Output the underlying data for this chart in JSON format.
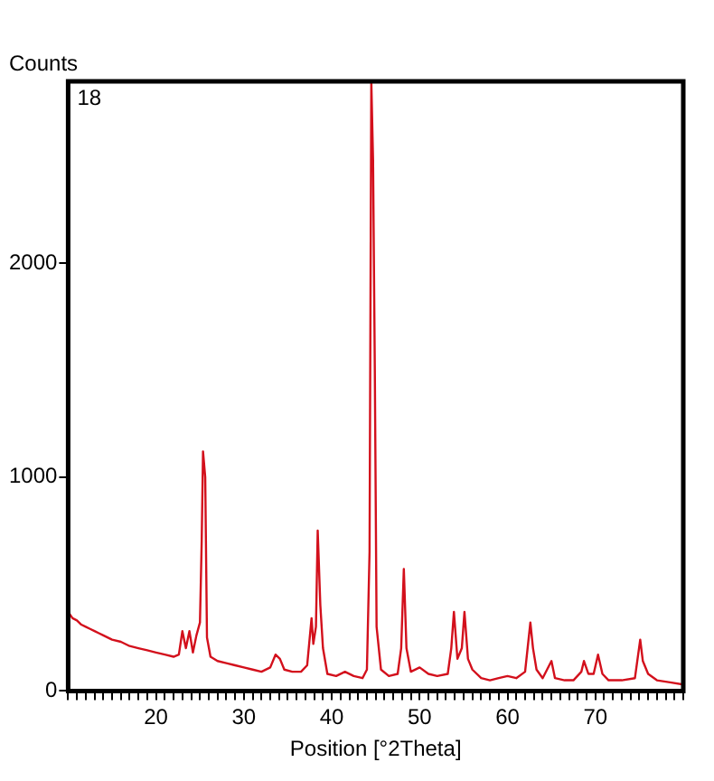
{
  "chart_data": {
    "type": "line",
    "xlabel": "Position [°2Theta]",
    "ylabel": "Counts",
    "annotations": [
      "18"
    ],
    "xlim": [
      10,
      80
    ],
    "ylim": [
      0,
      2850
    ],
    "xticks": [
      {
        "value": 10,
        "label": null
      },
      {
        "value": 11,
        "label": null
      },
      {
        "value": 12,
        "label": null
      },
      {
        "value": 13,
        "label": null
      },
      {
        "value": 14,
        "label": null
      },
      {
        "value": 15,
        "label": null
      },
      {
        "value": 16,
        "label": null
      },
      {
        "value": 17,
        "label": null
      },
      {
        "value": 18,
        "label": null
      },
      {
        "value": 19,
        "label": null
      },
      20,
      {
        "value": 21,
        "label": null
      },
      {
        "value": 22,
        "label": null
      },
      {
        "value": 23,
        "label": null
      },
      {
        "value": 24,
        "label": null
      },
      {
        "value": 25,
        "label": null
      },
      {
        "value": 26,
        "label": null
      },
      {
        "value": 27,
        "label": null
      },
      {
        "value": 28,
        "label": null
      },
      {
        "value": 29,
        "label": null
      },
      30,
      {
        "value": 31,
        "label": null
      },
      {
        "value": 32,
        "label": null
      },
      {
        "value": 33,
        "label": null
      },
      {
        "value": 34,
        "label": null
      },
      {
        "value": 35,
        "label": null
      },
      {
        "value": 36,
        "label": null
      },
      {
        "value": 37,
        "label": null
      },
      {
        "value": 38,
        "label": null
      },
      {
        "value": 39,
        "label": null
      },
      40,
      {
        "value": 41,
        "label": null
      },
      {
        "value": 42,
        "label": null
      },
      {
        "value": 43,
        "label": null
      },
      {
        "value": 44,
        "label": null
      },
      {
        "value": 45,
        "label": null
      },
      {
        "value": 46,
        "label": null
      },
      {
        "value": 47,
        "label": null
      },
      {
        "value": 48,
        "label": null
      },
      {
        "value": 49,
        "label": null
      },
      50,
      {
        "value": 51,
        "label": null
      },
      {
        "value": 52,
        "label": null
      },
      {
        "value": 53,
        "label": null
      },
      {
        "value": 54,
        "label": null
      },
      {
        "value": 55,
        "label": null
      },
      {
        "value": 56,
        "label": null
      },
      {
        "value": 57,
        "label": null
      },
      {
        "value": 58,
        "label": null
      },
      {
        "value": 59,
        "label": null
      },
      60,
      {
        "value": 61,
        "label": null
      },
      {
        "value": 62,
        "label": null
      },
      {
        "value": 63,
        "label": null
      },
      {
        "value": 64,
        "label": null
      },
      {
        "value": 65,
        "label": null
      },
      {
        "value": 66,
        "label": null
      },
      {
        "value": 67,
        "label": null
      },
      {
        "value": 68,
        "label": null
      },
      {
        "value": 69,
        "label": null
      },
      70,
      {
        "value": 71,
        "label": null
      },
      {
        "value": 72,
        "label": null
      },
      {
        "value": 73,
        "label": null
      },
      {
        "value": 74,
        "label": null
      },
      {
        "value": 75,
        "label": null
      },
      {
        "value": 76,
        "label": null
      },
      {
        "value": 77,
        "label": null
      },
      {
        "value": 78,
        "label": null
      },
      {
        "value": 79,
        "label": null
      },
      {
        "value": 80,
        "label": null
      }
    ],
    "yticks": [
      0,
      1000,
      2000
    ],
    "grid": false,
    "legend": false,
    "marker": "none",
    "line_style": "solid",
    "series": [
      {
        "color": "#d3101c",
        "x": [
          10,
          10.5,
          11,
          11.5,
          12,
          12.5,
          13,
          13.5,
          14,
          15,
          16,
          17,
          18,
          19,
          20,
          21,
          22,
          22.6,
          23.0,
          23.4,
          23.8,
          24.2,
          24.6,
          25.0,
          25.2,
          25.35,
          25.6,
          25.8,
          26.2,
          27,
          28,
          29,
          30,
          31,
          32,
          33,
          33.6,
          34.1,
          34.6,
          35.5,
          36.5,
          37.2,
          37.7,
          37.9,
          38.2,
          38.4,
          38.7,
          39.0,
          39.5,
          40.5,
          41.5,
          42.5,
          43.5,
          44.0,
          44.3,
          44.5,
          44.7,
          44.9,
          45.1,
          45.6,
          46.5,
          47.5,
          47.9,
          48.2,
          48.5,
          49,
          50,
          51,
          52,
          53.2,
          53.6,
          53.9,
          54.3,
          54.8,
          55.1,
          55.5,
          56,
          57,
          58,
          59,
          60,
          61,
          62,
          62.6,
          62.9,
          63.3,
          64,
          65,
          65.4,
          66.5,
          67.5,
          68.4,
          68.7,
          69.2,
          69.8,
          70.3,
          70.8,
          71.5,
          73,
          74.5,
          75.1,
          75.4,
          76,
          77,
          78.5,
          80
        ],
        "values": [
          370,
          340,
          330,
          310,
          300,
          290,
          280,
          270,
          260,
          240,
          230,
          210,
          200,
          190,
          180,
          170,
          160,
          170,
          280,
          200,
          280,
          180,
          260,
          320,
          700,
          1120,
          1000,
          250,
          160,
          140,
          130,
          120,
          110,
          100,
          90,
          110,
          170,
          150,
          100,
          90,
          90,
          120,
          340,
          220,
          300,
          750,
          400,
          200,
          80,
          70,
          90,
          70,
          60,
          100,
          650,
          2850,
          2480,
          1500,
          300,
          100,
          70,
          80,
          200,
          570,
          200,
          90,
          110,
          80,
          70,
          80,
          200,
          370,
          150,
          200,
          370,
          150,
          100,
          60,
          50,
          60,
          70,
          60,
          90,
          320,
          200,
          100,
          60,
          140,
          60,
          50,
          50,
          90,
          140,
          80,
          80,
          170,
          80,
          50,
          50,
          60,
          240,
          140,
          80,
          50,
          40,
          30
        ]
      }
    ]
  }
}
